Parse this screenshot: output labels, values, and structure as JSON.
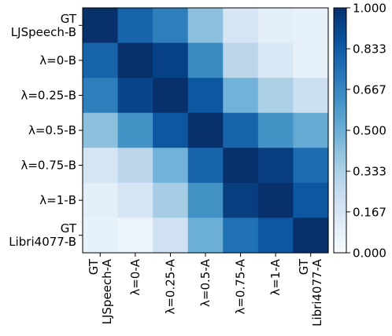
{
  "chart_data": {
    "type": "heatmap",
    "rows": [
      "GT\nLJSpeech-B",
      "λ=0-B",
      "λ=0.25-B",
      "λ=0.5-B",
      "λ=0.75-B",
      "λ=1-B",
      "GT\nLibri4077-B"
    ],
    "columns": [
      "GT\nLJSpeech-A",
      "λ=0-A",
      "λ=0.25-A",
      "λ=0.5-A",
      "λ=0.75-A",
      "λ=1-A",
      "GT\nLibri4077-A"
    ],
    "values": [
      [
        1.0,
        0.8,
        0.7,
        0.42,
        0.17,
        0.1,
        0.08
      ],
      [
        0.8,
        1.0,
        0.93,
        0.65,
        0.28,
        0.15,
        0.08
      ],
      [
        0.7,
        0.92,
        1.0,
        0.85,
        0.48,
        0.33,
        0.22
      ],
      [
        0.42,
        0.62,
        0.85,
        1.0,
        0.8,
        0.62,
        0.52
      ],
      [
        0.17,
        0.28,
        0.48,
        0.8,
        1.0,
        0.95,
        0.77
      ],
      [
        0.1,
        0.17,
        0.35,
        0.63,
        0.95,
        1.0,
        0.85
      ],
      [
        0.08,
        0.06,
        0.2,
        0.5,
        0.75,
        0.85,
        1.0
      ]
    ],
    "colorbar": {
      "min": 0.0,
      "max": 1.0,
      "ticks": [
        "0.000",
        "0.167",
        "0.333",
        "0.500",
        "0.667",
        "0.833",
        "1.000"
      ],
      "colormap": "Blues"
    }
  }
}
